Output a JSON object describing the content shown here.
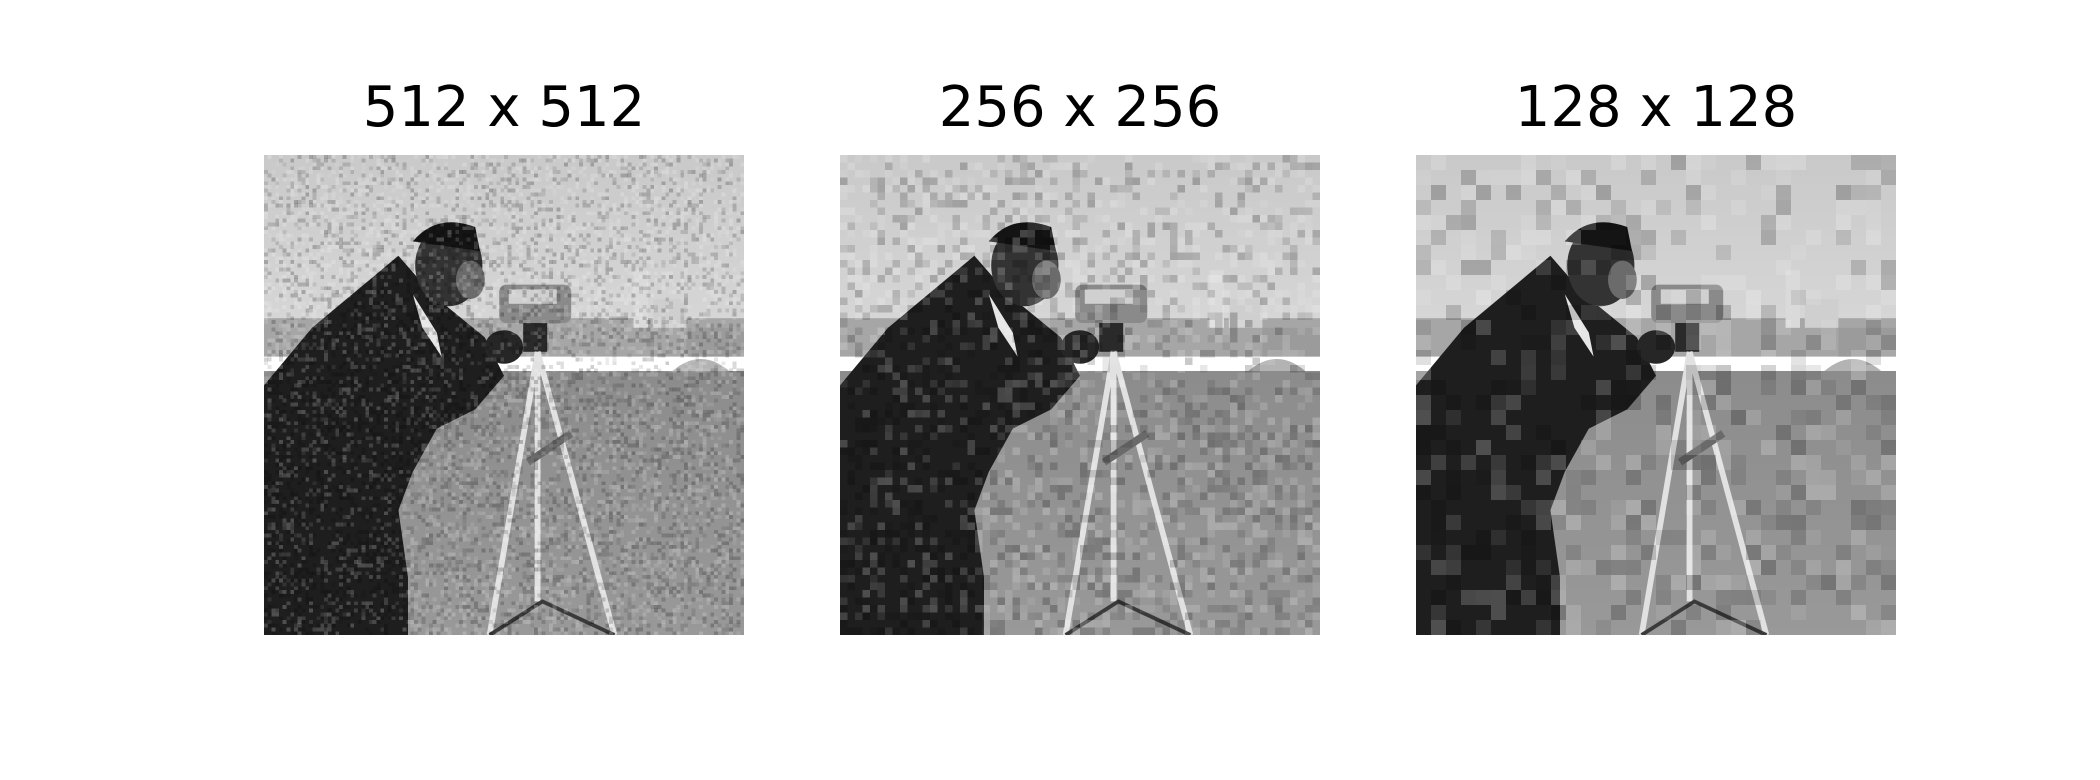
{
  "figure": {
    "panels": [
      {
        "title": "512 x 512",
        "resolution": 512,
        "image": "cameraman photograph with noise",
        "depicts": [
          "person",
          "camera",
          "tripod",
          "grass field",
          "buildings"
        ]
      },
      {
        "title": "256 x 256",
        "resolution": 256,
        "image": "cameraman photograph with noise",
        "depicts": [
          "person",
          "camera",
          "tripod",
          "grass field",
          "buildings"
        ]
      },
      {
        "title": "128 x 128",
        "resolution": 128,
        "image": "cameraman photograph with noise",
        "depicts": [
          "person",
          "camera",
          "tripod",
          "grass field",
          "buildings"
        ]
      }
    ]
  }
}
